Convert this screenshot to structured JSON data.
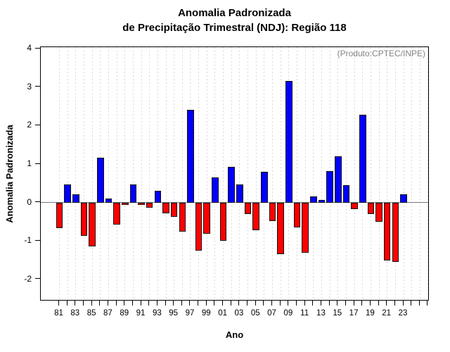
{
  "title": {
    "line1": "Anomalia Padronizada",
    "line2": "de Precipitação Trimestral (NDJ): Região 118"
  },
  "annotation": "(Produto:CPTEC/INPE)",
  "chart_data": {
    "type": "bar",
    "title": "Anomalia Padronizada de Precipitação Trimestral (NDJ): Região 118",
    "xlabel": "Ano",
    "ylabel": "Anomalia Padronizada",
    "x": [
      1981,
      1982,
      1983,
      1984,
      1985,
      1986,
      1987,
      1988,
      1989,
      1990,
      1991,
      1992,
      1993,
      1994,
      1995,
      1996,
      1997,
      1998,
      1999,
      2000,
      2001,
      2002,
      2003,
      2004,
      2005,
      2006,
      2007,
      2008,
      2009,
      2010,
      2011,
      2012,
      2013,
      2014,
      2015,
      2016,
      2017,
      2018,
      2019,
      2020,
      2021,
      2022,
      2023
    ],
    "values": [
      -0.67,
      0.47,
      0.22,
      -0.86,
      -1.14,
      1.17,
      0.11,
      -0.58,
      -0.06,
      0.47,
      -0.07,
      -0.13,
      0.3,
      -0.28,
      -0.38,
      -0.76,
      2.41,
      -1.25,
      -0.81,
      0.65,
      -1.0,
      0.93,
      0.47,
      -0.3,
      -0.72,
      0.8,
      -0.49,
      -1.35,
      3.16,
      -0.65,
      -1.3,
      0.16,
      0.06,
      0.81,
      1.2,
      0.46,
      -0.17,
      2.29,
      -0.3,
      -0.51,
      -1.51,
      -1.55,
      0.21
    ],
    "xtick_labels": [
      "81",
      "83",
      "85",
      "87",
      "89",
      "91",
      "93",
      "95",
      "97",
      "99",
      "01",
      "03",
      "05",
      "07",
      "09",
      "11",
      "13",
      "15",
      "17",
      "19",
      "21",
      "23"
    ],
    "xtick_every": 2,
    "yticks": [
      4,
      3,
      2,
      1,
      0,
      -1,
      -2
    ],
    "ylim": [
      -2.57,
      4.04
    ],
    "grid": "vertical-dotted",
    "gridline_positions": 46,
    "legend": "none",
    "bar_color_positive": "#0000FF",
    "bar_color_negative": "#FF0000",
    "bar_border_color": "#111111",
    "zero_line_color": "#7a7a7a",
    "gridline_color": "#d9d9d9",
    "annotation_color": "#848484"
  }
}
